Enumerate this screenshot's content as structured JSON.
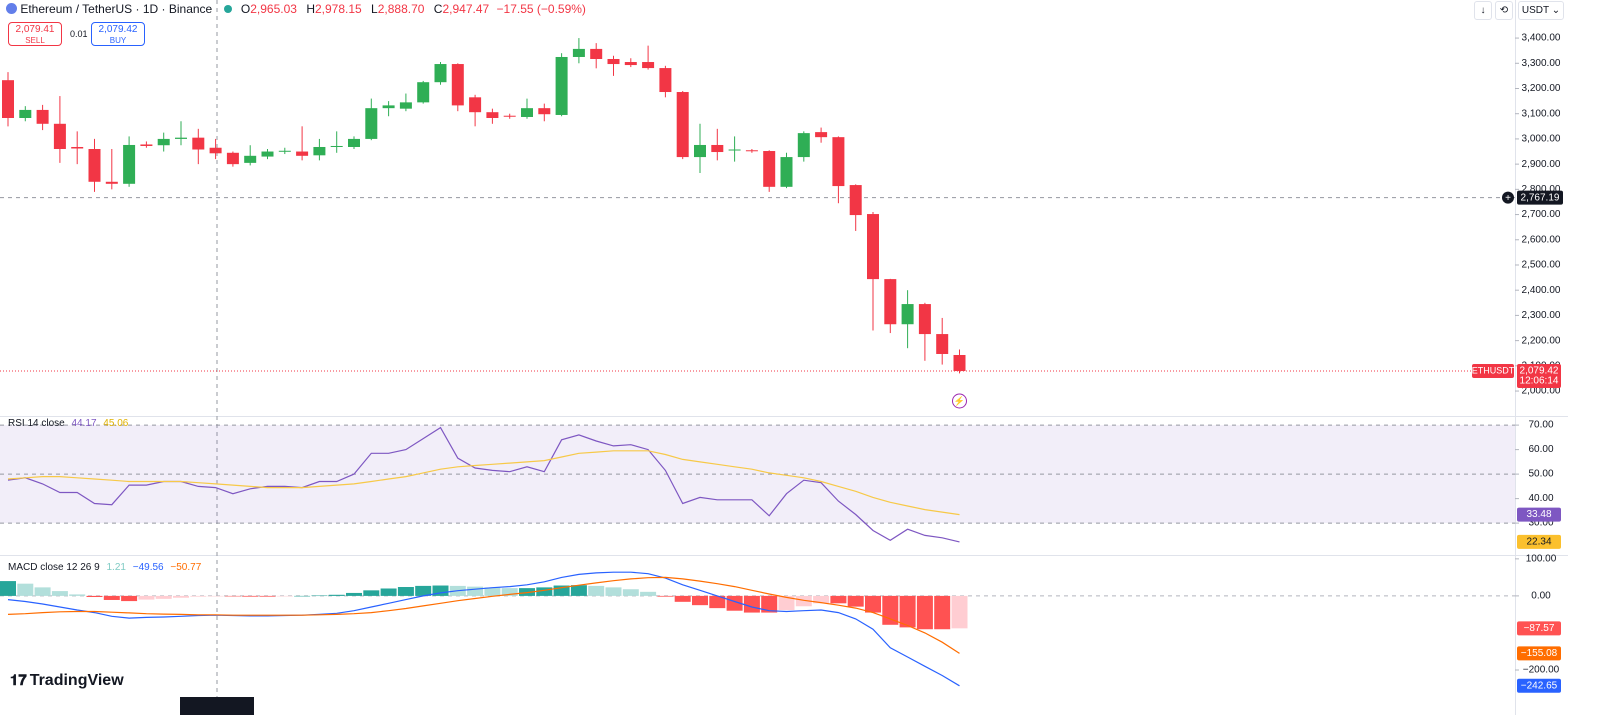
{
  "header": {
    "symbol": "Ethereum / TetherUS · 1D · Binance",
    "ohlc": [
      {
        "key": "O",
        "value": "2,965.03"
      },
      {
        "key": "H",
        "value": "2,978.15"
      },
      {
        "key": "L",
        "value": "2,888.70"
      },
      {
        "key": "C",
        "value": "2,947.47"
      }
    ],
    "change": "−17.55 (−0.59%)",
    "sell_price": "2,079.41",
    "sell": "SELL",
    "spread": "0.01",
    "buy_price": "2,079.42",
    "buy": "BUY",
    "currency": "USDT",
    "brand": "TradingView"
  },
  "chart_data": [
    {
      "type": "candlestick",
      "up_color": "#2fae55",
      "down_color": "#f23645",
      "open": [
        3233,
        3083,
        3115,
        3060,
        2968,
        2960,
        2830,
        2822,
        2978,
        2975,
        3000,
        3005,
        2965,
        2945,
        2905,
        2930,
        2950,
        2950,
        2935,
        2968,
        2968,
        3000,
        3122,
        3120,
        3145,
        3225,
        3297,
        3165,
        3106,
        3092,
        3087,
        3122,
        3095,
        3325,
        3357,
        3317,
        3305,
        3305,
        3281,
        3186,
        2928,
        2976,
        2955,
        2955,
        2952,
        2810,
        2928,
        3027,
        3007,
        2817,
        2702,
        2444,
        2265,
        2345,
        2226,
        2143
      ],
      "high": [
        3265,
        3130,
        3135,
        3170,
        3030,
        3000,
        2960,
        3010,
        2990,
        3025,
        3070,
        3040,
        3000,
        2950,
        2975,
        2960,
        2965,
        3050,
        3000,
        3030,
        3010,
        3160,
        3150,
        3180,
        3230,
        3305,
        3300,
        3175,
        3120,
        3100,
        3160,
        3140,
        3340,
        3400,
        3380,
        3330,
        3320,
        3370,
        3290,
        3190,
        3060,
        3040,
        3010,
        2960,
        2955,
        2945,
        3030,
        3045,
        3010,
        2820,
        2710,
        2445,
        2400,
        2350,
        2290,
        2165
      ],
      "low": [
        3050,
        3070,
        3035,
        2905,
        2900,
        2790,
        2800,
        2810,
        2965,
        2950,
        2975,
        2900,
        2920,
        2890,
        2895,
        2920,
        2940,
        2915,
        2915,
        2945,
        2960,
        2995,
        3090,
        3110,
        3140,
        3215,
        3110,
        3050,
        3060,
        3080,
        3080,
        3070,
        3090,
        3300,
        3280,
        3250,
        3285,
        3275,
        3165,
        2920,
        2865,
        2915,
        2910,
        2945,
        2790,
        2805,
        2910,
        2985,
        2745,
        2635,
        2240,
        2230,
        2170,
        2120,
        2105,
        2070
      ],
      "close": [
        3083,
        3115,
        3060,
        2960,
        2962,
        2830,
        2822,
        2976,
        2972,
        3000,
        3005,
        2958,
        2943,
        2900,
        2933,
        2950,
        2953,
        2933,
        2968,
        2972,
        3000,
        3122,
        3133,
        3145,
        3225,
        3297,
        3133,
        3106,
        3083,
        3088,
        3122,
        3098,
        3325,
        3357,
        3317,
        3297,
        3293,
        3281,
        3186,
        2928,
        2976,
        2948,
        2958,
        2952,
        2810,
        2928,
        3023,
        3007,
        2813,
        2698,
        2444,
        2265,
        2345,
        2226,
        2147,
        2079.42
      ],
      "ylim": [
        1905,
        3551
      ],
      "yticks": [
        {
          "value": 3400,
          "label": "3,400.00"
        },
        {
          "value": 3300,
          "label": "3,300.00"
        },
        {
          "value": 3200,
          "label": "3,200.00"
        },
        {
          "value": 3100,
          "label": "3,100.00"
        },
        {
          "value": 3000,
          "label": "3,000.00"
        },
        {
          "value": 2900,
          "label": "2,900.00"
        },
        {
          "value": 2800,
          "label": "2,800.00"
        },
        {
          "value": 2700,
          "label": "2,700.00"
        },
        {
          "value": 2600,
          "label": "2,600.00"
        },
        {
          "value": 2500,
          "label": "2,500.00"
        },
        {
          "value": 2400,
          "label": "2,400.00"
        },
        {
          "value": 2300,
          "label": "2,300.00"
        },
        {
          "value": 2200,
          "label": "2,200.00"
        },
        {
          "value": 2100,
          "label": "2,100.00"
        },
        {
          "value": 2000,
          "label": "2,000.00"
        }
      ],
      "crosshair": {
        "value": 2767.19,
        "label": "2,767.19"
      },
      "last_price": {
        "value": 2079.42,
        "label": "2,079.42",
        "name": "ETHUSDT",
        "countdown": "12:06:14",
        "color": "#f23645"
      }
    },
    {
      "type": "line",
      "title": "RSI 14 close",
      "legend_values": [
        "44.17",
        "45.06"
      ],
      "series": [
        {
          "color": "#7e57c2",
          "values": [
            47.5,
            48.5,
            46,
            42.5,
            42.5,
            38,
            37.5,
            45.5,
            45.5,
            47,
            47,
            45,
            44.5,
            42,
            44,
            45,
            45,
            44.5,
            47,
            47,
            50,
            58.5,
            58.5,
            60,
            64.5,
            69,
            56.5,
            52.5,
            51.5,
            51,
            53,
            51,
            64,
            66,
            63.5,
            61.5,
            62,
            60,
            51.5,
            38,
            40.5,
            39.5,
            39.5,
            39.5,
            33,
            42,
            47.5,
            46.5,
            39,
            33.5,
            27,
            23,
            27.5,
            25,
            24,
            22.34
          ]
        },
        {
          "color": "#f7c948",
          "values": [
            48,
            48.5,
            49,
            49,
            48.5,
            48,
            47.5,
            47,
            47,
            47,
            47,
            46.5,
            46,
            45.5,
            45,
            44.5,
            44.5,
            44.5,
            45,
            45.5,
            46,
            47,
            48,
            49,
            50.5,
            52,
            53,
            53.5,
            54,
            54.5,
            55,
            55.5,
            57,
            58.5,
            59,
            59.5,
            59.5,
            59.5,
            58,
            56,
            55,
            54,
            53,
            52,
            50.5,
            49.5,
            48.5,
            47,
            45,
            43,
            40.5,
            38.5,
            37,
            35.5,
            34.5,
            33.48
          ]
        }
      ],
      "band": [
        30,
        70
      ],
      "midline": 50,
      "band_color": "#7e57c2",
      "ylim": [
        17.8,
        72.9
      ],
      "yticks": [
        {
          "value": 70,
          "label": "70.00"
        },
        {
          "value": 60,
          "label": "60.00"
        },
        {
          "value": 50,
          "label": "50.00"
        },
        {
          "value": 40,
          "label": "40.00"
        },
        {
          "value": 30,
          "label": "30.00"
        }
      ]
    },
    {
      "type": "macd",
      "title": "MACD close 12 26 9",
      "legend_values": [
        "1.21",
        "−49.56",
        "−50.77"
      ],
      "histogram": {
        "colors": [
          "#26a69a",
          "#b2dfdb",
          "#ffcdd2",
          "#ff5252"
        ],
        "last_label": "−87.57",
        "values": [
          40,
          33,
          23,
          13,
          4,
          -3,
          -11,
          -14,
          -10,
          -8,
          -5,
          -2,
          -1,
          -1,
          -2,
          -2,
          -1,
          0,
          1,
          3,
          8,
          15,
          20,
          24,
          27,
          28,
          27,
          25,
          23,
          21,
          21,
          23,
          28,
          29,
          27,
          23,
          18,
          11,
          -2,
          -16,
          -25,
          -33,
          -40,
          -45,
          -45,
          -38,
          -28,
          -20,
          -20,
          -29,
          -45,
          -78,
          -85,
          -90,
          -90,
          -87.57
        ]
      },
      "series": [
        {
          "color": "#2962ff",
          "last_label": "−242.65",
          "values": [
            -10,
            -15,
            -22,
            -30,
            -38,
            -45,
            -55,
            -60,
            -58,
            -57,
            -55,
            -53,
            -52,
            -53,
            -54,
            -54,
            -53,
            -52,
            -50,
            -47,
            -40,
            -30,
            -20,
            -10,
            0,
            8,
            14,
            18,
            22,
            25,
            30,
            38,
            50,
            58,
            62,
            64,
            64,
            60,
            48,
            30,
            15,
            0,
            -15,
            -30,
            -40,
            -42,
            -40,
            -38,
            -45,
            -62,
            -90,
            -140,
            -165,
            -190,
            -215,
            -242.65
          ]
        },
        {
          "color": "#ff6d00",
          "last_label": "−155.08",
          "values": [
            -50,
            -48,
            -45,
            -43,
            -42,
            -42,
            -44,
            -46,
            -48,
            -49,
            -50,
            -51,
            -51,
            -52,
            -52,
            -52,
            -52,
            -52,
            -51,
            -50,
            -48,
            -45,
            -40,
            -34,
            -27,
            -20,
            -13,
            -7,
            -1,
            4,
            9,
            15,
            22,
            29,
            35,
            41,
            46,
            49,
            50,
            46,
            40,
            33,
            25,
            15,
            5,
            -4,
            -12,
            -18,
            -25,
            -33,
            -45,
            -62,
            -80,
            -100,
            -125,
            -155.08
          ]
        }
      ],
      "ylim": [
        -281,
        105
      ],
      "yticks": [
        {
          "value": 100,
          "label": "100.00"
        },
        {
          "value": 0,
          "label": "0.00"
        },
        {
          "value": -200,
          "label": "−200.00"
        }
      ]
    }
  ]
}
